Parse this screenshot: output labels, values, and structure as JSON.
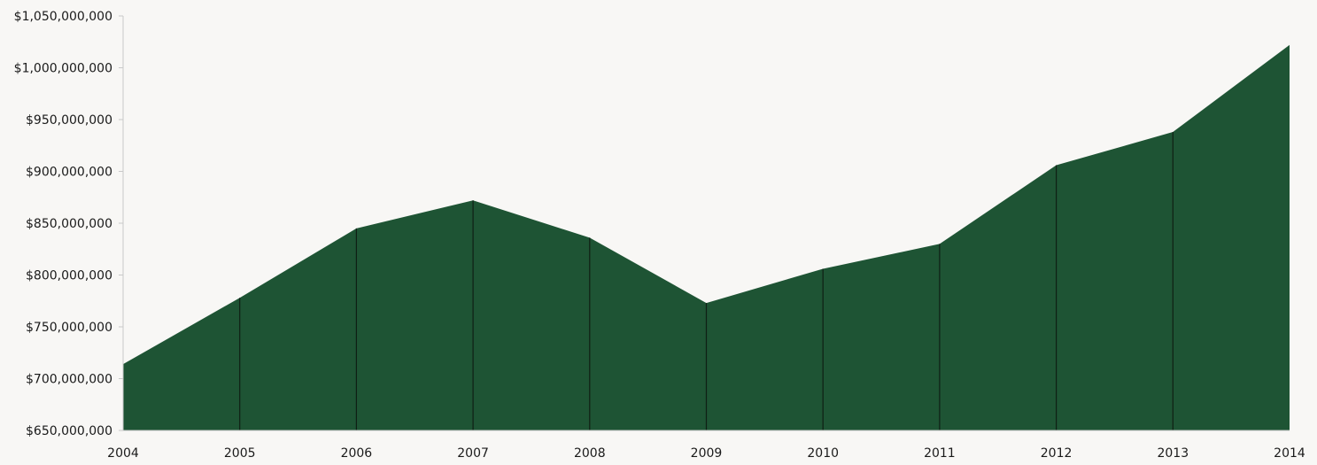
{
  "chart_data": {
    "type": "area",
    "title": "",
    "xlabel": "",
    "ylabel": "",
    "x": [
      "2004",
      "2005",
      "2006",
      "2007",
      "2008",
      "2009",
      "2010",
      "2011",
      "2012",
      "2013",
      "2014"
    ],
    "series": [
      {
        "values": [
          714000000,
          778000000,
          845000000,
          872000000,
          836000000,
          773000000,
          806000000,
          830000000,
          906000000,
          938000000,
          1022000000
        ]
      }
    ],
    "ylim": [
      650000000,
      1050000000
    ],
    "yticks": [
      650000000,
      700000000,
      750000000,
      800000000,
      850000000,
      900000000,
      950000000,
      1000000000,
      1050000000
    ],
    "ytick_labels": [
      "$650,000,000",
      "$700,000,000",
      "$750,000,000",
      "$800,000,000",
      "$850,000,000",
      "$900,000,000",
      "$950,000,000",
      "$1,000,000,000",
      "$1,050,000,000"
    ],
    "grid": false,
    "legend": "none",
    "colors": {
      "fill": "#1e5434",
      "divider": "#0f1f14",
      "axis": "#c9c9c9",
      "background": "#f8f7f5"
    }
  }
}
